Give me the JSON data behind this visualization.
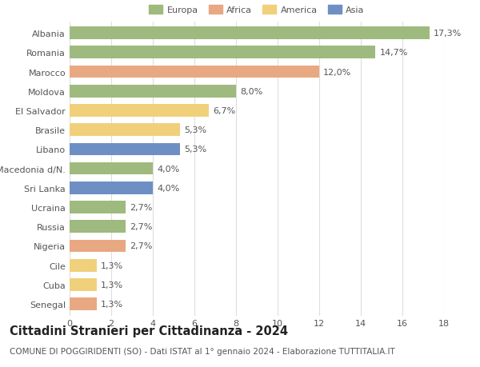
{
  "categories": [
    "Albania",
    "Romania",
    "Marocco",
    "Moldova",
    "El Salvador",
    "Brasile",
    "Libano",
    "Macedonia d/N.",
    "Sri Lanka",
    "Ucraina",
    "Russia",
    "Nigeria",
    "Cile",
    "Cuba",
    "Senegal"
  ],
  "values": [
    17.3,
    14.7,
    12.0,
    8.0,
    6.7,
    5.3,
    5.3,
    4.0,
    4.0,
    2.7,
    2.7,
    2.7,
    1.3,
    1.3,
    1.3
  ],
  "labels": [
    "17,3%",
    "14,7%",
    "12,0%",
    "8,0%",
    "6,7%",
    "5,3%",
    "5,3%",
    "4,0%",
    "4,0%",
    "2,7%",
    "2,7%",
    "2,7%",
    "1,3%",
    "1,3%",
    "1,3%"
  ],
  "continents": [
    "Europa",
    "Europa",
    "Africa",
    "Europa",
    "America",
    "America",
    "Asia",
    "Europa",
    "Asia",
    "Europa",
    "Europa",
    "Africa",
    "America",
    "America",
    "Africa"
  ],
  "continent_colors": {
    "Europa": "#9eba7e",
    "Africa": "#e8a882",
    "America": "#f0d07a",
    "Asia": "#6e8fc4"
  },
  "legend_order": [
    "Europa",
    "Africa",
    "America",
    "Asia"
  ],
  "title": "Cittadini Stranieri per Cittadinanza - 2024",
  "subtitle": "COMUNE DI POGGIRIDENTI (SO) - Dati ISTAT al 1° gennaio 2024 - Elaborazione TUTTITALIA.IT",
  "xlim": [
    0,
    18
  ],
  "xticks": [
    0,
    2,
    4,
    6,
    8,
    10,
    12,
    14,
    16,
    18
  ],
  "background_color": "#ffffff",
  "grid_color": "#dddddd",
  "bar_height": 0.65,
  "label_fontsize": 8,
  "tick_fontsize": 8,
  "title_fontsize": 10.5,
  "subtitle_fontsize": 7.5
}
